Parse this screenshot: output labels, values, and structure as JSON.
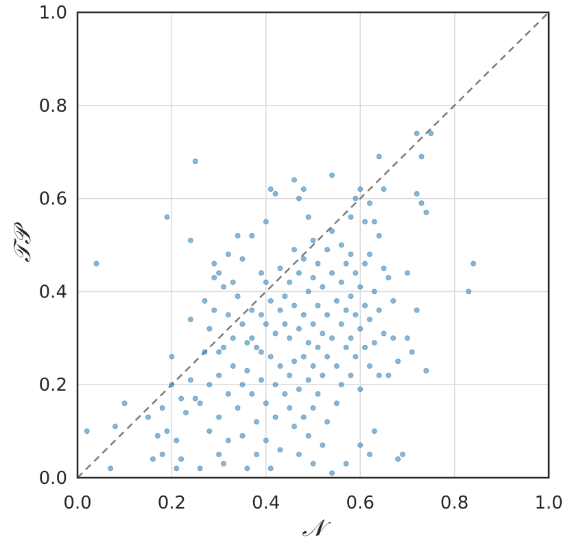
{
  "chart_data": {
    "type": "scatter",
    "title": "",
    "xlabel": "𝒩",
    "ylabel": "𝒯𝒫",
    "xlim": [
      0.0,
      1.0
    ],
    "ylim": [
      0.0,
      1.0
    ],
    "grid": true,
    "x_ticks": [
      "0.0",
      "0.2",
      "0.4",
      "0.6",
      "0.8",
      "1.0"
    ],
    "y_ticks": [
      "0.0",
      "0.2",
      "0.4",
      "0.6",
      "0.8",
      "1.0"
    ],
    "reference_line": {
      "style": "dashed",
      "from": [
        0,
        0
      ],
      "to": [
        1,
        1
      ]
    },
    "colors": {
      "points": "#3b8bc2",
      "reference_line": "#7a7a7a",
      "frame": "#262626",
      "grid": "#d9d9d9"
    },
    "points": [
      [
        0.02,
        0.1
      ],
      [
        0.04,
        0.46
      ],
      [
        0.07,
        0.02
      ],
      [
        0.08,
        0.11
      ],
      [
        0.1,
        0.16
      ],
      [
        0.15,
        0.13
      ],
      [
        0.16,
        0.04
      ],
      [
        0.17,
        0.09
      ],
      [
        0.18,
        0.05
      ],
      [
        0.18,
        0.15
      ],
      [
        0.19,
        0.56
      ],
      [
        0.19,
        0.1
      ],
      [
        0.2,
        0.2
      ],
      [
        0.2,
        0.26
      ],
      [
        0.21,
        0.02
      ],
      [
        0.21,
        0.08
      ],
      [
        0.22,
        0.04
      ],
      [
        0.22,
        0.17
      ],
      [
        0.23,
        0.14
      ],
      [
        0.24,
        0.51
      ],
      [
        0.24,
        0.34
      ],
      [
        0.24,
        0.21
      ],
      [
        0.25,
        0.68
      ],
      [
        0.25,
        0.17
      ],
      [
        0.26,
        0.02
      ],
      [
        0.26,
        0.16
      ],
      [
        0.27,
        0.27
      ],
      [
        0.27,
        0.38
      ],
      [
        0.28,
        0.32
      ],
      [
        0.28,
        0.2
      ],
      [
        0.28,
        0.1
      ],
      [
        0.29,
        0.46
      ],
      [
        0.29,
        0.43
      ],
      [
        0.29,
        0.36
      ],
      [
        0.3,
        0.44
      ],
      [
        0.3,
        0.27
      ],
      [
        0.3,
        0.22
      ],
      [
        0.3,
        0.13
      ],
      [
        0.3,
        0.05
      ],
      [
        0.31,
        0.03
      ],
      [
        0.31,
        0.41
      ],
      [
        0.31,
        0.28
      ],
      [
        0.32,
        0.48
      ],
      [
        0.32,
        0.35
      ],
      [
        0.32,
        0.18
      ],
      [
        0.32,
        0.08
      ],
      [
        0.33,
        0.42
      ],
      [
        0.33,
        0.3
      ],
      [
        0.33,
        0.24
      ],
      [
        0.34,
        0.52
      ],
      [
        0.34,
        0.39
      ],
      [
        0.34,
        0.15
      ],
      [
        0.35,
        0.47
      ],
      [
        0.35,
        0.33
      ],
      [
        0.35,
        0.2
      ],
      [
        0.35,
        0.09
      ],
      [
        0.36,
        0.29
      ],
      [
        0.36,
        0.23
      ],
      [
        0.36,
        0.02
      ],
      [
        0.37,
        0.52
      ],
      [
        0.37,
        0.36
      ],
      [
        0.37,
        0.3
      ],
      [
        0.37,
        0.18
      ],
      [
        0.38,
        0.28
      ],
      [
        0.38,
        0.12
      ],
      [
        0.38,
        0.05
      ],
      [
        0.39,
        0.44
      ],
      [
        0.39,
        0.35
      ],
      [
        0.39,
        0.27
      ],
      [
        0.39,
        0.21
      ],
      [
        0.4,
        0.55
      ],
      [
        0.4,
        0.42
      ],
      [
        0.4,
        0.33
      ],
      [
        0.4,
        0.16
      ],
      [
        0.4,
        0.08
      ],
      [
        0.41,
        0.62
      ],
      [
        0.41,
        0.38
      ],
      [
        0.41,
        0.26
      ],
      [
        0.41,
        0.02
      ],
      [
        0.42,
        0.61
      ],
      [
        0.42,
        0.31
      ],
      [
        0.42,
        0.2
      ],
      [
        0.42,
        0.13
      ],
      [
        0.43,
        0.45
      ],
      [
        0.43,
        0.36
      ],
      [
        0.43,
        0.24
      ],
      [
        0.43,
        0.06
      ],
      [
        0.44,
        0.39
      ],
      [
        0.44,
        0.33
      ],
      [
        0.44,
        0.18
      ],
      [
        0.45,
        0.42
      ],
      [
        0.45,
        0.3
      ],
      [
        0.45,
        0.22
      ],
      [
        0.45,
        0.15
      ],
      [
        0.46,
        0.64
      ],
      [
        0.46,
        0.49
      ],
      [
        0.46,
        0.37
      ],
      [
        0.46,
        0.25
      ],
      [
        0.46,
        0.11
      ],
      [
        0.47,
        0.6
      ],
      [
        0.47,
        0.44
      ],
      [
        0.47,
        0.32
      ],
      [
        0.47,
        0.19
      ],
      [
        0.47,
        0.05
      ],
      [
        0.48,
        0.62
      ],
      [
        0.48,
        0.47
      ],
      [
        0.48,
        0.35
      ],
      [
        0.48,
        0.26
      ],
      [
        0.48,
        0.13
      ],
      [
        0.49,
        0.56
      ],
      [
        0.49,
        0.4
      ],
      [
        0.49,
        0.29
      ],
      [
        0.49,
        0.21
      ],
      [
        0.49,
        0.09
      ],
      [
        0.5,
        0.51
      ],
      [
        0.5,
        0.43
      ],
      [
        0.5,
        0.33
      ],
      [
        0.5,
        0.24
      ],
      [
        0.5,
        0.15
      ],
      [
        0.5,
        0.03
      ],
      [
        0.51,
        0.46
      ],
      [
        0.51,
        0.37
      ],
      [
        0.51,
        0.28
      ],
      [
        0.51,
        0.18
      ],
      [
        0.52,
        0.41
      ],
      [
        0.52,
        0.31
      ],
      [
        0.52,
        0.22
      ],
      [
        0.52,
        0.07
      ],
      [
        0.53,
        0.49
      ],
      [
        0.53,
        0.35
      ],
      [
        0.53,
        0.26
      ],
      [
        0.53,
        0.12
      ],
      [
        0.54,
        0.65
      ],
      [
        0.54,
        0.53
      ],
      [
        0.54,
        0.44
      ],
      [
        0.54,
        0.3
      ],
      [
        0.54,
        0.01
      ],
      [
        0.55,
        0.38
      ],
      [
        0.55,
        0.24
      ],
      [
        0.55,
        0.16
      ],
      [
        0.56,
        0.5
      ],
      [
        0.56,
        0.42
      ],
      [
        0.56,
        0.33
      ],
      [
        0.56,
        0.2
      ],
      [
        0.57,
        0.46
      ],
      [
        0.57,
        0.36
      ],
      [
        0.57,
        0.28
      ],
      [
        0.57,
        0.03
      ],
      [
        0.58,
        0.56
      ],
      [
        0.58,
        0.48
      ],
      [
        0.58,
        0.39
      ],
      [
        0.58,
        0.3
      ],
      [
        0.58,
        0.22
      ],
      [
        0.59,
        0.6
      ],
      [
        0.59,
        0.44
      ],
      [
        0.59,
        0.35
      ],
      [
        0.59,
        0.26
      ],
      [
        0.6,
        0.62
      ],
      [
        0.6,
        0.41
      ],
      [
        0.6,
        0.32
      ],
      [
        0.6,
        0.19
      ],
      [
        0.6,
        0.07
      ],
      [
        0.61,
        0.55
      ],
      [
        0.61,
        0.46
      ],
      [
        0.61,
        0.37
      ],
      [
        0.61,
        0.28
      ],
      [
        0.62,
        0.59
      ],
      [
        0.62,
        0.48
      ],
      [
        0.62,
        0.34
      ],
      [
        0.62,
        0.24
      ],
      [
        0.62,
        0.05
      ],
      [
        0.63,
        0.55
      ],
      [
        0.63,
        0.4
      ],
      [
        0.63,
        0.29
      ],
      [
        0.63,
        0.1
      ],
      [
        0.64,
        0.69
      ],
      [
        0.64,
        0.52
      ],
      [
        0.64,
        0.36
      ],
      [
        0.64,
        0.22
      ],
      [
        0.65,
        0.62
      ],
      [
        0.65,
        0.45
      ],
      [
        0.65,
        0.31
      ],
      [
        0.66,
        0.43
      ],
      [
        0.66,
        0.22
      ],
      [
        0.67,
        0.38
      ],
      [
        0.67,
        0.3
      ],
      [
        0.68,
        0.25
      ],
      [
        0.68,
        0.04
      ],
      [
        0.69,
        0.05
      ],
      [
        0.7,
        0.44
      ],
      [
        0.7,
        0.3
      ],
      [
        0.71,
        0.27
      ],
      [
        0.72,
        0.61
      ],
      [
        0.72,
        0.36
      ],
      [
        0.72,
        0.74
      ],
      [
        0.73,
        0.69
      ],
      [
        0.73,
        0.59
      ],
      [
        0.74,
        0.57
      ],
      [
        0.74,
        0.23
      ],
      [
        0.75,
        0.74
      ],
      [
        0.83,
        0.4
      ],
      [
        0.84,
        0.46
      ]
    ]
  }
}
